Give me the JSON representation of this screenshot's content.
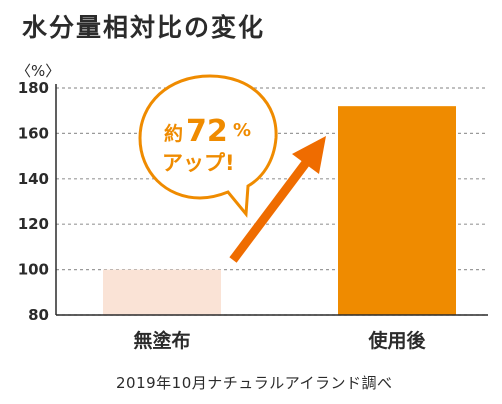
{
  "title": "水分量相対比の変化",
  "unit_label": "〈%〉",
  "source": "2019年10月ナチュラルアイランド調べ",
  "callout": {
    "prefix": "約",
    "value": "72",
    "percent": "%",
    "line2": "アップ!"
  },
  "colors": {
    "before_bar": "#fae3d6",
    "after_bar": "#ef8b00",
    "arrow": "#ef6c00",
    "callout_text": "#ef8b00",
    "grid": "#9a9a9a"
  },
  "chart_data": {
    "type": "bar",
    "categories": [
      "無塗布",
      "使用後"
    ],
    "values": [
      100,
      172
    ],
    "ylim": [
      80,
      180
    ],
    "yticks": [
      80,
      100,
      120,
      140,
      160,
      180
    ],
    "grid": true,
    "ylabel": "〈%〉",
    "title": "水分量相対比の変化"
  }
}
